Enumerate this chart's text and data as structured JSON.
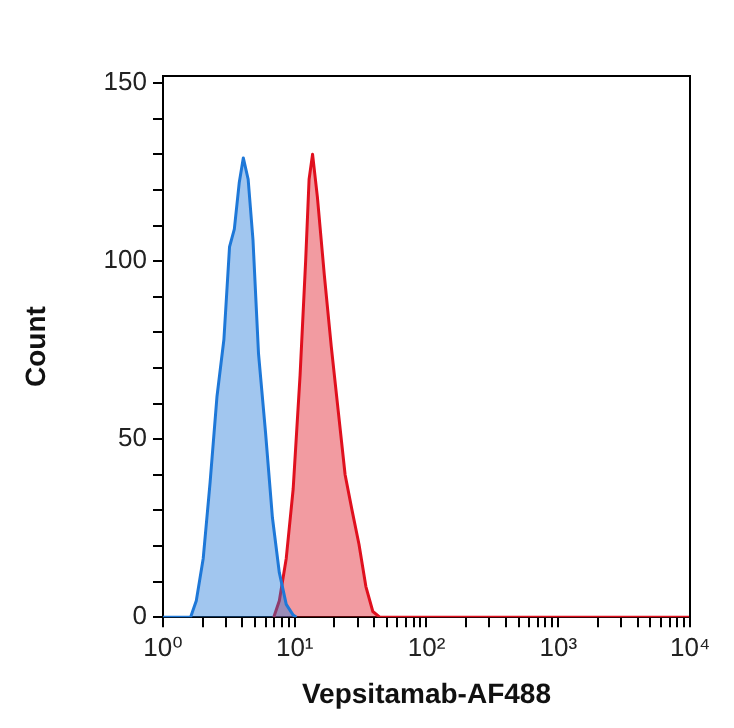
{
  "chart_data": {
    "type": "area",
    "xlabel": "Vepsitamab-AF488",
    "ylabel": "Count",
    "log": "x",
    "grid": false,
    "legend": false,
    "marker": "none",
    "xlim": [
      1,
      10000
    ],
    "ylim": [
      0,
      152
    ],
    "xticks": [
      {
        "value": 1,
        "label": "10⁰"
      },
      {
        "value": 2,
        "label": null
      },
      {
        "value": 3,
        "label": null
      },
      {
        "value": 4,
        "label": null
      },
      {
        "value": 5,
        "label": null
      },
      {
        "value": 6,
        "label": null
      },
      {
        "value": 7,
        "label": null
      },
      {
        "value": 8,
        "label": null
      },
      {
        "value": 9,
        "label": null
      },
      {
        "value": 10,
        "label": "10¹"
      },
      {
        "value": 20,
        "label": null
      },
      {
        "value": 30,
        "label": null
      },
      {
        "value": 40,
        "label": null
      },
      {
        "value": 50,
        "label": null
      },
      {
        "value": 60,
        "label": null
      },
      {
        "value": 70,
        "label": null
      },
      {
        "value": 80,
        "label": null
      },
      {
        "value": 90,
        "label": null
      },
      {
        "value": 100,
        "label": "10²"
      },
      {
        "value": 200,
        "label": null
      },
      {
        "value": 300,
        "label": null
      },
      {
        "value": 400,
        "label": null
      },
      {
        "value": 500,
        "label": null
      },
      {
        "value": 600,
        "label": null
      },
      {
        "value": 700,
        "label": null
      },
      {
        "value": 800,
        "label": null
      },
      {
        "value": 900,
        "label": null
      },
      {
        "value": 1000,
        "label": "10³"
      },
      {
        "value": 2000,
        "label": null
      },
      {
        "value": 3000,
        "label": null
      },
      {
        "value": 4000,
        "label": null
      },
      {
        "value": 5000,
        "label": null
      },
      {
        "value": 6000,
        "label": null
      },
      {
        "value": 7000,
        "label": null
      },
      {
        "value": 8000,
        "label": null
      },
      {
        "value": 9000,
        "label": null
      },
      {
        "value": 10000,
        "label": "10⁴"
      }
    ],
    "yticks": [
      0,
      {
        "value": 10,
        "label": null
      },
      {
        "value": 20,
        "label": null
      },
      {
        "value": 30,
        "label": null
      },
      {
        "value": 40,
        "label": null
      },
      50,
      {
        "value": 60,
        "label": null
      },
      {
        "value": 70,
        "label": null
      },
      {
        "value": 80,
        "label": null
      },
      {
        "value": 90,
        "label": null
      },
      100,
      {
        "value": 110,
        "label": null
      },
      {
        "value": 120,
        "label": null
      },
      {
        "value": 130,
        "label": null
      },
      {
        "value": 140,
        "label": null
      },
      150
    ],
    "series": [
      {
        "color": "#1e78d8",
        "x": [
          1,
          1.62,
          1.79,
          2.02,
          2.28,
          2.57,
          2.9,
          3.2,
          3.48,
          3.79,
          4.07,
          4.43,
          4.82,
          5.31,
          6.0,
          6.77,
          7.64,
          8.62,
          9.73,
          10.3
        ],
        "values": [
          0,
          0,
          4.6,
          16.5,
          38,
          62,
          78,
          104,
          109,
          122,
          129,
          123,
          106,
          74,
          52,
          28,
          12.5,
          3.6,
          0.6,
          0
        ]
      },
      {
        "color": "#e0101e",
        "x": [
          6.93,
          7.64,
          8.62,
          9.73,
          10.98,
          12.1,
          12.85,
          13.66,
          14.86,
          16.78,
          18.94,
          21.37,
          24.12,
          27.23,
          30.73,
          34.68,
          39.14,
          44.18,
          10000
        ],
        "values": [
          0,
          4.6,
          16.5,
          36,
          68,
          100,
          123,
          130,
          118,
          96,
          76,
          58,
          40,
          30,
          20.5,
          8.6,
          1.6,
          0,
          0
        ]
      }
    ]
  }
}
